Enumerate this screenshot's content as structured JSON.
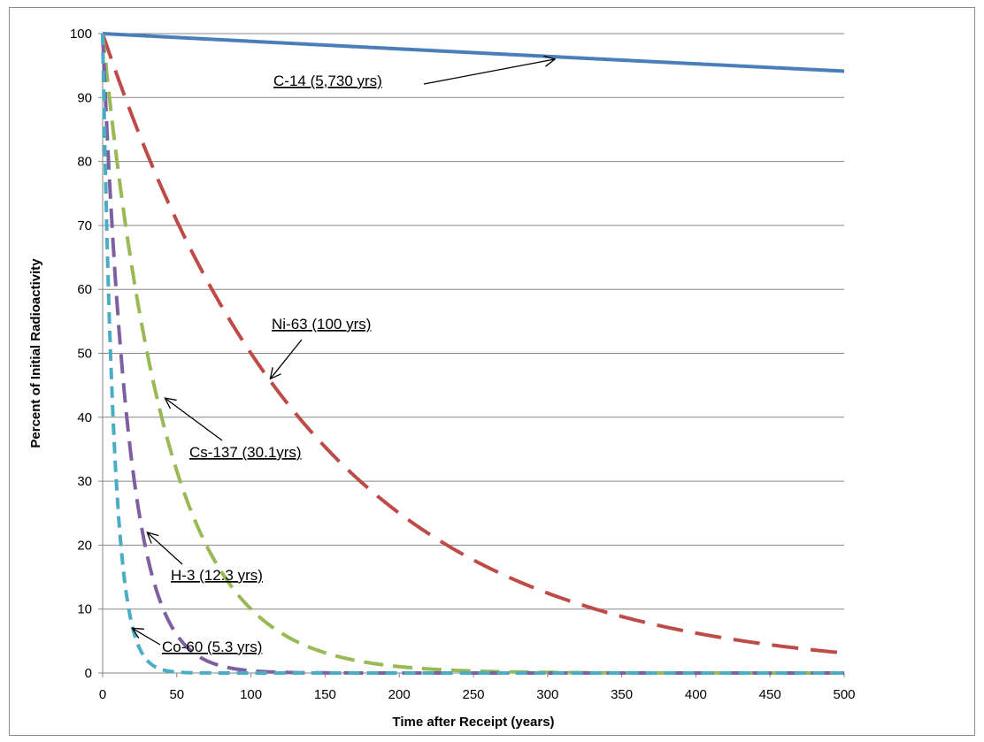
{
  "chart_data": {
    "type": "line",
    "title": "",
    "xlabel": "Time after Receipt (years)",
    "ylabel": "Percent of Initial Radioactivity",
    "xlim": [
      0,
      500
    ],
    "ylim": [
      0,
      100
    ],
    "xticks": [
      0,
      50,
      100,
      150,
      200,
      250,
      300,
      350,
      400,
      450,
      500
    ],
    "yticks": [
      0,
      10,
      20,
      30,
      40,
      50,
      60,
      70,
      80,
      90,
      100
    ],
    "grid": "horizontal",
    "legend": "none",
    "series": [
      {
        "isotope": "C-14",
        "half_life_years": 5730,
        "color": "#4a7ebb",
        "style": "solid",
        "x": [
          0,
          100,
          200,
          300,
          400,
          500
        ],
        "y": [
          100,
          98.8,
          97.6,
          96.4,
          95.3,
          94.1
        ]
      },
      {
        "isotope": "Ni-63",
        "half_life_years": 100,
        "color": "#be4b48",
        "style": "long-dash",
        "x": [
          0,
          50,
          100,
          150,
          200,
          250,
          300,
          350,
          400,
          450,
          500
        ],
        "y": [
          100,
          70.7,
          50,
          35.4,
          25,
          17.7,
          12.5,
          8.8,
          6.3,
          4.4,
          3.1
        ]
      },
      {
        "isotope": "Cs-137",
        "half_life_years": 30.1,
        "color": "#98b954",
        "style": "dash",
        "x": [
          0,
          25,
          50,
          75,
          100,
          150,
          200,
          250,
          300,
          400,
          500
        ],
        "y": [
          100,
          56.2,
          31.6,
          17.8,
          10,
          3.2,
          1,
          0.3,
          0.1,
          0,
          0
        ]
      },
      {
        "isotope": "H-3",
        "half_life_years": 12.3,
        "color": "#7d60a0",
        "style": "dash",
        "x": [
          0,
          10,
          20,
          30,
          40,
          50,
          75,
          100,
          150,
          200,
          300,
          500
        ],
        "y": [
          100,
          56.9,
          32.4,
          18.4,
          10.5,
          6,
          1.5,
          0.4,
          0,
          0,
          0,
          0
        ]
      },
      {
        "isotope": "Co-60",
        "half_life_years": 5.3,
        "color": "#4bacc6",
        "style": "short-dash",
        "x": [
          0,
          5,
          10,
          15,
          20,
          30,
          40,
          50,
          75,
          100,
          200,
          500
        ],
        "y": [
          100,
          52.0,
          27.0,
          14.1,
          7.3,
          2.0,
          0.5,
          0.1,
          0,
          0,
          0,
          0
        ]
      }
    ],
    "annotations": [
      {
        "text": "C-14 (5,730 yrs)",
        "points_to": {
          "x": 305,
          "y": 96
        }
      },
      {
        "text": "Ni-63 (100 yrs)",
        "points_to": {
          "x": 113,
          "y": 46
        }
      },
      {
        "text": "Cs-137 (30.1yrs)",
        "points_to": {
          "x": 42,
          "y": 43
        }
      },
      {
        "text": "H-3 (12.3 yrs)",
        "points_to": {
          "x": 30,
          "y": 22
        }
      },
      {
        "text": "Co-60 (5.3 yrs)",
        "points_to": {
          "x": 20,
          "y": 7
        }
      }
    ]
  }
}
